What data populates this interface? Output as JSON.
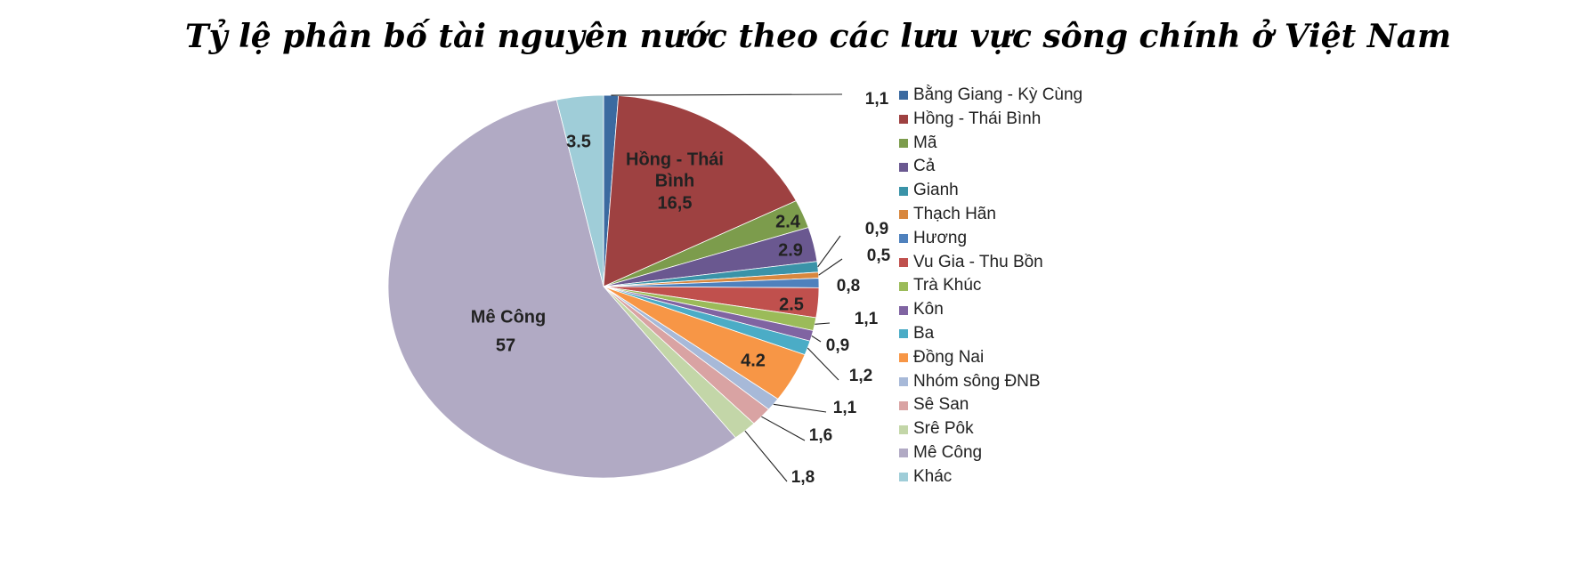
{
  "chart_data": {
    "type": "pie",
    "title": "Tỷ lệ phân bố tài nguyên nước theo các lưu vực sông chính ở Việt Nam",
    "start_angle_deg": 0,
    "direction": "clockwise",
    "legend_position": "right",
    "slices": [
      {
        "name": "Bằng Giang - Kỳ Cùng",
        "value": 1.1,
        "label": "1,1",
        "color": "#3b6aa0"
      },
      {
        "name": "Hồng - Thái Bình",
        "value": 16.5,
        "label": "16,5",
        "color": "#9e4141"
      },
      {
        "name": "Mã",
        "value": 2.4,
        "label": "2.4",
        "color": "#7c9c4c"
      },
      {
        "name": "Cả",
        "value": 2.9,
        "label": "2.9",
        "color": "#6a5890"
      },
      {
        "name": "Gianh",
        "value": 0.9,
        "label": "0,9",
        "color": "#3a93a8"
      },
      {
        "name": "Thạch Hãn",
        "value": 0.5,
        "label": "0,5",
        "color": "#d8873e"
      },
      {
        "name": "Hương",
        "value": 0.8,
        "label": "0,8",
        "color": "#4f81bd"
      },
      {
        "name": "Vu Gia - Thu Bồn",
        "value": 2.5,
        "label": "2.5",
        "color": "#c0504d"
      },
      {
        "name": "Trà Khúc",
        "value": 1.1,
        "label": "1,1",
        "color": "#9bbb59"
      },
      {
        "name": "Kôn",
        "value": 0.9,
        "label": "0,9",
        "color": "#8064a2"
      },
      {
        "name": "Ba",
        "value": 1.2,
        "label": "1,2",
        "color": "#4bacc6"
      },
      {
        "name": "Đồng Nai",
        "value": 4.2,
        "label": "4.2",
        "color": "#f79646"
      },
      {
        "name": "Nhóm sông ĐNB",
        "value": 1.1,
        "label": "1,1",
        "color": "#a7b9d8"
      },
      {
        "name": "Sê San",
        "value": 1.6,
        "label": "1,6",
        "color": "#d9a3a3"
      },
      {
        "name": "Srê Pôk",
        "value": 1.8,
        "label": "1,8",
        "color": "#c3d6a8"
      },
      {
        "name": "Mê Công",
        "value": 57,
        "label": "57",
        "color": "#b1aac4"
      },
      {
        "name": "Khác",
        "value": 3.5,
        "label": "3.5",
        "color": "#9fcdd8"
      }
    ],
    "inside_labels": {
      "hong_name_line1": "Hồng - Thái",
      "hong_name_line2": "Bình",
      "mekong_name": "Mê Công"
    }
  }
}
